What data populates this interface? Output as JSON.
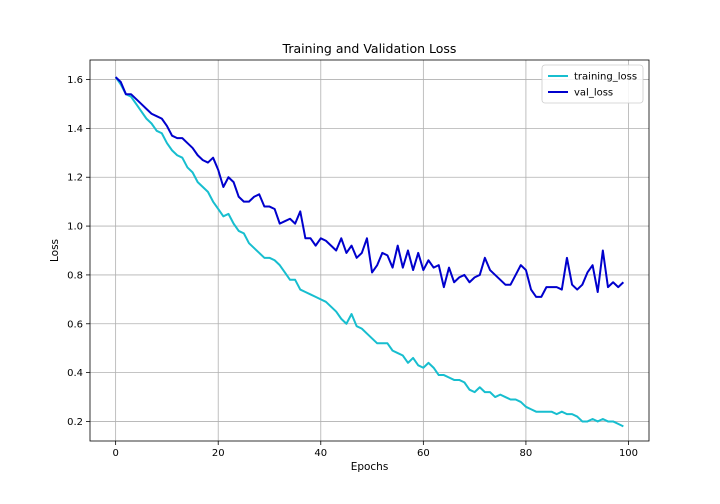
{
  "chart_data": {
    "type": "line",
    "title": "Training and Validation Loss",
    "xlabel": "Epochs",
    "ylabel": "Loss",
    "xlim": [
      -5,
      104
    ],
    "ylim": [
      0.12,
      1.68
    ],
    "xticks": [
      0,
      20,
      40,
      60,
      80,
      100
    ],
    "yticks": [
      0.2,
      0.4,
      0.6,
      0.8,
      1.0,
      1.2,
      1.4,
      1.6
    ],
    "grid": true,
    "legend_position": "top-right",
    "series": [
      {
        "name": "training_loss",
        "color": "#17becf",
        "values": [
          1.61,
          1.58,
          1.54,
          1.53,
          1.5,
          1.47,
          1.44,
          1.42,
          1.39,
          1.38,
          1.34,
          1.31,
          1.29,
          1.28,
          1.24,
          1.22,
          1.18,
          1.16,
          1.14,
          1.1,
          1.07,
          1.04,
          1.05,
          1.01,
          0.98,
          0.97,
          0.93,
          0.91,
          0.89,
          0.87,
          0.87,
          0.86,
          0.84,
          0.81,
          0.78,
          0.78,
          0.74,
          0.73,
          0.72,
          0.71,
          0.7,
          0.69,
          0.67,
          0.65,
          0.62,
          0.6,
          0.64,
          0.59,
          0.58,
          0.56,
          0.54,
          0.52,
          0.52,
          0.52,
          0.49,
          0.48,
          0.47,
          0.44,
          0.46,
          0.43,
          0.42,
          0.44,
          0.42,
          0.39,
          0.39,
          0.38,
          0.37,
          0.37,
          0.36,
          0.33,
          0.32,
          0.34,
          0.32,
          0.32,
          0.3,
          0.31,
          0.3,
          0.29,
          0.29,
          0.28,
          0.26,
          0.25,
          0.24,
          0.24,
          0.24,
          0.24,
          0.23,
          0.24,
          0.23,
          0.23,
          0.22,
          0.2,
          0.2,
          0.21,
          0.2,
          0.21,
          0.2,
          0.2,
          0.19,
          0.18
        ]
      },
      {
        "name": "val_loss",
        "color": "#0000cd",
        "values": [
          1.61,
          1.59,
          1.54,
          1.54,
          1.52,
          1.5,
          1.48,
          1.46,
          1.45,
          1.44,
          1.41,
          1.37,
          1.36,
          1.36,
          1.34,
          1.32,
          1.29,
          1.27,
          1.26,
          1.28,
          1.23,
          1.16,
          1.2,
          1.18,
          1.12,
          1.1,
          1.1,
          1.12,
          1.13,
          1.08,
          1.08,
          1.07,
          1.01,
          1.02,
          1.03,
          1.01,
          1.06,
          0.95,
          0.95,
          0.92,
          0.95,
          0.94,
          0.92,
          0.9,
          0.95,
          0.89,
          0.92,
          0.87,
          0.89,
          0.95,
          0.81,
          0.84,
          0.89,
          0.88,
          0.83,
          0.92,
          0.83,
          0.9,
          0.82,
          0.89,
          0.82,
          0.86,
          0.83,
          0.84,
          0.75,
          0.83,
          0.77,
          0.79,
          0.8,
          0.77,
          0.79,
          0.8,
          0.87,
          0.82,
          0.8,
          0.78,
          0.76,
          0.76,
          0.8,
          0.84,
          0.82,
          0.74,
          0.71,
          0.71,
          0.75,
          0.75,
          0.75,
          0.74,
          0.87,
          0.76,
          0.74,
          0.76,
          0.81,
          0.84,
          0.73,
          0.9,
          0.75,
          0.77,
          0.75,
          0.77
        ]
      }
    ]
  }
}
